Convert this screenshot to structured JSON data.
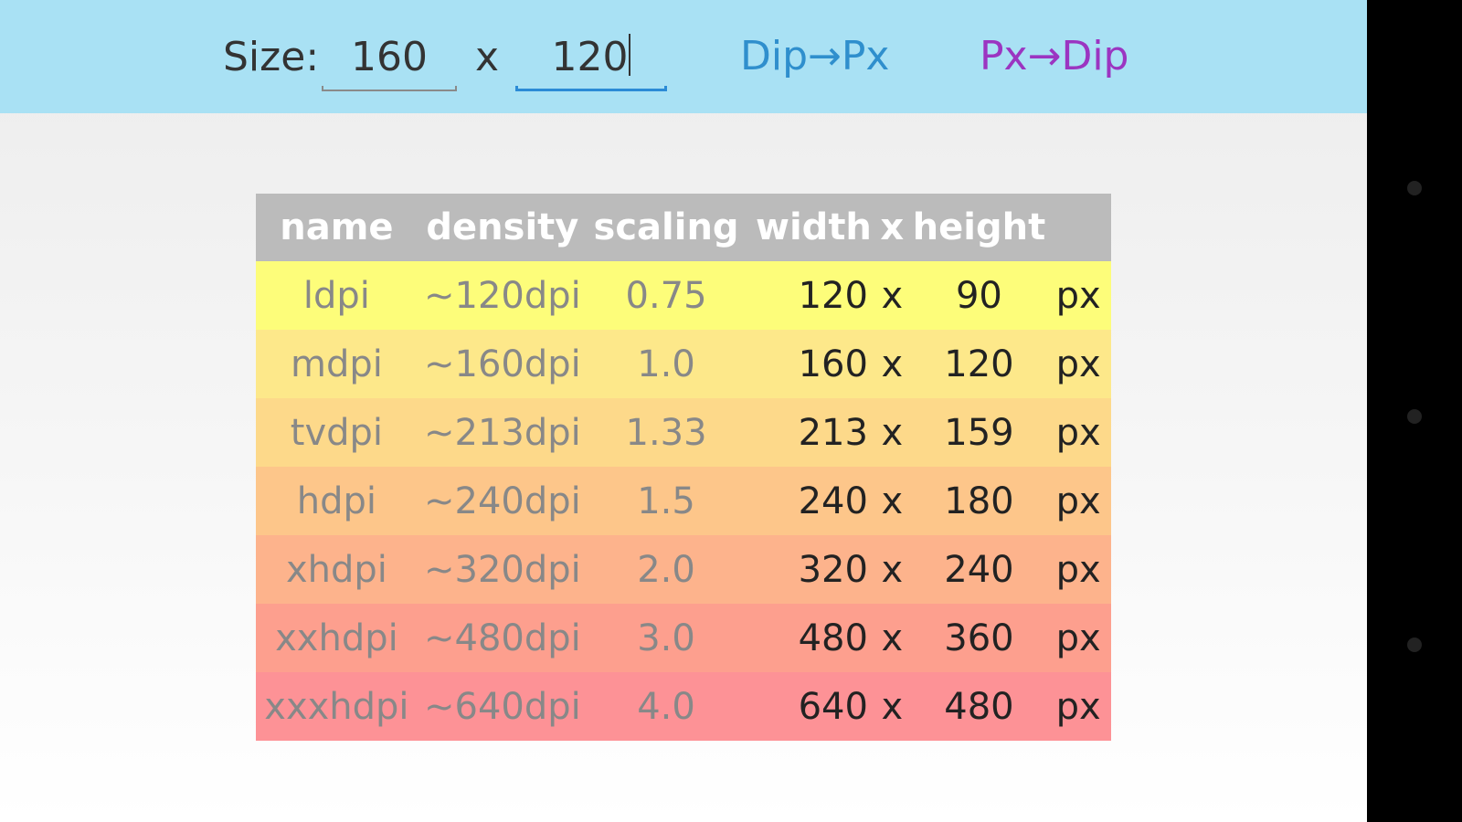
{
  "toolbar": {
    "size_label": "Size:",
    "width_value": "160",
    "times": "x",
    "height_value": "120",
    "dip_to_px_label": "Dip→Px",
    "px_to_dip_label": "Px→Dip"
  },
  "table": {
    "headers": [
      "name",
      "density",
      "scaling",
      "width",
      "x",
      "height"
    ],
    "rows": [
      {
        "name": "ldpi",
        "density": "~120dpi",
        "scaling": "0.75",
        "width": "120",
        "x": "x",
        "height": "90",
        "unit": "px",
        "color": "#fdfd7a"
      },
      {
        "name": "mdpi",
        "density": "~160dpi",
        "scaling": "1.0",
        "width": "160",
        "x": "x",
        "height": "120",
        "unit": "px",
        "color": "#fde88a"
      },
      {
        "name": "tvdpi",
        "density": "~213dpi",
        "scaling": "1.33",
        "width": "213",
        "x": "x",
        "height": "159",
        "unit": "px",
        "color": "#fdd98a"
      },
      {
        "name": "hdpi",
        "density": "~240dpi",
        "scaling": "1.5",
        "width": "240",
        "x": "x",
        "height": "180",
        "unit": "px",
        "color": "#fdc68a"
      },
      {
        "name": "xhdpi",
        "density": "~320dpi",
        "scaling": "2.0",
        "width": "320",
        "x": "x",
        "height": "240",
        "unit": "px",
        "color": "#fdb38c"
      },
      {
        "name": "xxhdpi",
        "density": "~480dpi",
        "scaling": "3.0",
        "width": "480",
        "x": "x",
        "height": "360",
        "unit": "px",
        "color": "#fd9f8e"
      },
      {
        "name": "xxxhdpi",
        "density": "~640dpi",
        "scaling": "4.0",
        "width": "640",
        "x": "x",
        "height": "480",
        "unit": "px",
        "color": "#fd9296"
      }
    ]
  },
  "colors": {
    "toolbar_bg": "#a9e1f4",
    "dip_to_px": "#2f8fcd",
    "px_to_dip": "#9b35c1",
    "header_bg": "#bbbbbb"
  }
}
